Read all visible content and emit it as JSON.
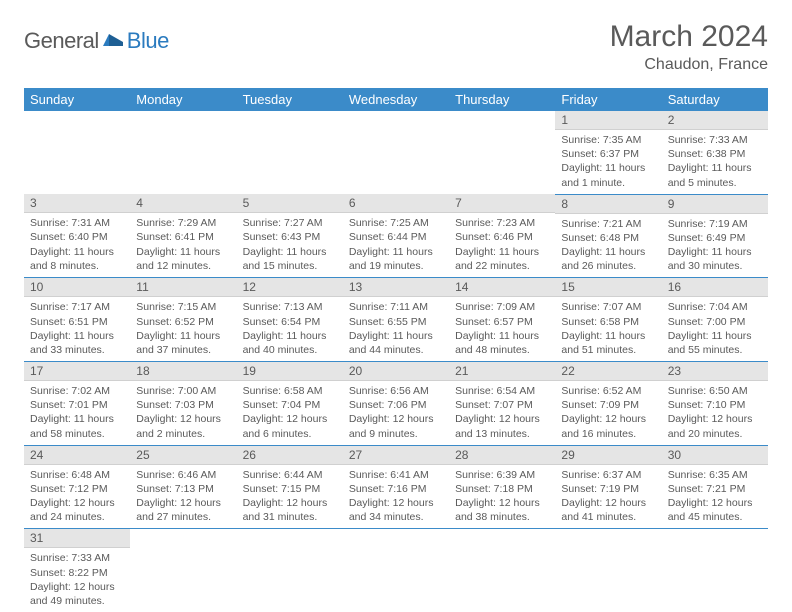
{
  "logo": {
    "part1": "General",
    "part2": "Blue"
  },
  "title": "March 2024",
  "location": "Chaudon, France",
  "colors": {
    "header_bg": "#3b8bc9",
    "text": "#5a5a5a",
    "daynum_bg": "#e5e5e5"
  },
  "day_headers": [
    "Sunday",
    "Monday",
    "Tuesday",
    "Wednesday",
    "Thursday",
    "Friday",
    "Saturday"
  ],
  "weeks": [
    [
      null,
      null,
      null,
      null,
      null,
      {
        "n": "1",
        "sunrise": "7:35 AM",
        "sunset": "6:37 PM",
        "daylight": "11 hours and 1 minute."
      },
      {
        "n": "2",
        "sunrise": "7:33 AM",
        "sunset": "6:38 PM",
        "daylight": "11 hours and 5 minutes."
      }
    ],
    [
      {
        "n": "3",
        "sunrise": "7:31 AM",
        "sunset": "6:40 PM",
        "daylight": "11 hours and 8 minutes."
      },
      {
        "n": "4",
        "sunrise": "7:29 AM",
        "sunset": "6:41 PM",
        "daylight": "11 hours and 12 minutes."
      },
      {
        "n": "5",
        "sunrise": "7:27 AM",
        "sunset": "6:43 PM",
        "daylight": "11 hours and 15 minutes."
      },
      {
        "n": "6",
        "sunrise": "7:25 AM",
        "sunset": "6:44 PM",
        "daylight": "11 hours and 19 minutes."
      },
      {
        "n": "7",
        "sunrise": "7:23 AM",
        "sunset": "6:46 PM",
        "daylight": "11 hours and 22 minutes."
      },
      {
        "n": "8",
        "sunrise": "7:21 AM",
        "sunset": "6:48 PM",
        "daylight": "11 hours and 26 minutes."
      },
      {
        "n": "9",
        "sunrise": "7:19 AM",
        "sunset": "6:49 PM",
        "daylight": "11 hours and 30 minutes."
      }
    ],
    [
      {
        "n": "10",
        "sunrise": "7:17 AM",
        "sunset": "6:51 PM",
        "daylight": "11 hours and 33 minutes."
      },
      {
        "n": "11",
        "sunrise": "7:15 AM",
        "sunset": "6:52 PM",
        "daylight": "11 hours and 37 minutes."
      },
      {
        "n": "12",
        "sunrise": "7:13 AM",
        "sunset": "6:54 PM",
        "daylight": "11 hours and 40 minutes."
      },
      {
        "n": "13",
        "sunrise": "7:11 AM",
        "sunset": "6:55 PM",
        "daylight": "11 hours and 44 minutes."
      },
      {
        "n": "14",
        "sunrise": "7:09 AM",
        "sunset": "6:57 PM",
        "daylight": "11 hours and 48 minutes."
      },
      {
        "n": "15",
        "sunrise": "7:07 AM",
        "sunset": "6:58 PM",
        "daylight": "11 hours and 51 minutes."
      },
      {
        "n": "16",
        "sunrise": "7:04 AM",
        "sunset": "7:00 PM",
        "daylight": "11 hours and 55 minutes."
      }
    ],
    [
      {
        "n": "17",
        "sunrise": "7:02 AM",
        "sunset": "7:01 PM",
        "daylight": "11 hours and 58 minutes."
      },
      {
        "n": "18",
        "sunrise": "7:00 AM",
        "sunset": "7:03 PM",
        "daylight": "12 hours and 2 minutes."
      },
      {
        "n": "19",
        "sunrise": "6:58 AM",
        "sunset": "7:04 PM",
        "daylight": "12 hours and 6 minutes."
      },
      {
        "n": "20",
        "sunrise": "6:56 AM",
        "sunset": "7:06 PM",
        "daylight": "12 hours and 9 minutes."
      },
      {
        "n": "21",
        "sunrise": "6:54 AM",
        "sunset": "7:07 PM",
        "daylight": "12 hours and 13 minutes."
      },
      {
        "n": "22",
        "sunrise": "6:52 AM",
        "sunset": "7:09 PM",
        "daylight": "12 hours and 16 minutes."
      },
      {
        "n": "23",
        "sunrise": "6:50 AM",
        "sunset": "7:10 PM",
        "daylight": "12 hours and 20 minutes."
      }
    ],
    [
      {
        "n": "24",
        "sunrise": "6:48 AM",
        "sunset": "7:12 PM",
        "daylight": "12 hours and 24 minutes."
      },
      {
        "n": "25",
        "sunrise": "6:46 AM",
        "sunset": "7:13 PM",
        "daylight": "12 hours and 27 minutes."
      },
      {
        "n": "26",
        "sunrise": "6:44 AM",
        "sunset": "7:15 PM",
        "daylight": "12 hours and 31 minutes."
      },
      {
        "n": "27",
        "sunrise": "6:41 AM",
        "sunset": "7:16 PM",
        "daylight": "12 hours and 34 minutes."
      },
      {
        "n": "28",
        "sunrise": "6:39 AM",
        "sunset": "7:18 PM",
        "daylight": "12 hours and 38 minutes."
      },
      {
        "n": "29",
        "sunrise": "6:37 AM",
        "sunset": "7:19 PM",
        "daylight": "12 hours and 41 minutes."
      },
      {
        "n": "30",
        "sunrise": "6:35 AM",
        "sunset": "7:21 PM",
        "daylight": "12 hours and 45 minutes."
      }
    ],
    [
      {
        "n": "31",
        "sunrise": "7:33 AM",
        "sunset": "8:22 PM",
        "daylight": "12 hours and 49 minutes."
      },
      null,
      null,
      null,
      null,
      null,
      null
    ]
  ],
  "labels": {
    "sunrise": "Sunrise: ",
    "sunset": "Sunset: ",
    "daylight": "Daylight: "
  }
}
